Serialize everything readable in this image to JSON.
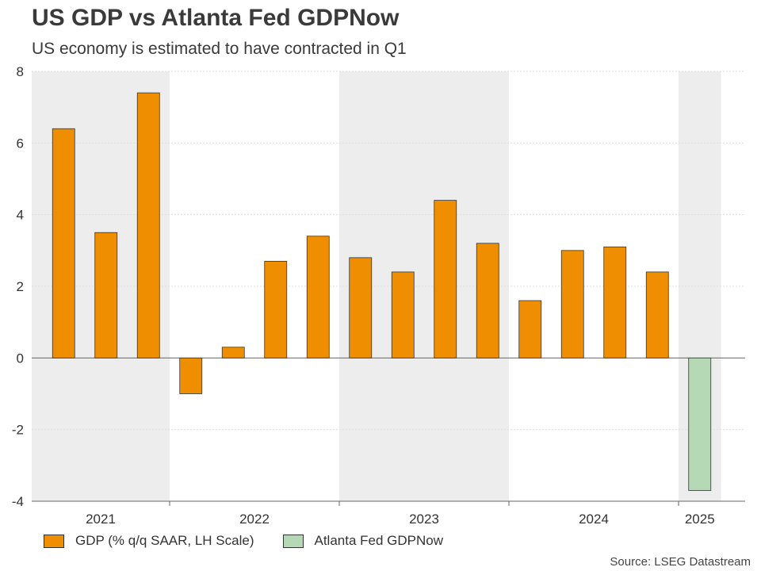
{
  "chart_data": {
    "type": "bar",
    "title": "US GDP vs Atlanta Fed GDPNow",
    "subtitle": "US economy is estimated to have contracted in Q1",
    "ylim": [
      -4,
      8
    ],
    "yticks": [
      "8",
      "6",
      "4",
      "2",
      "0",
      "-2",
      "-4"
    ],
    "grid": true,
    "legend_position": "bottom-left",
    "groups": [
      {
        "year": "2021",
        "shaded": true,
        "values": [
          6.4,
          3.5,
          7.4
        ]
      },
      {
        "year": "2022",
        "shaded": false,
        "values": [
          -1.0,
          0.3,
          2.7,
          3.4
        ]
      },
      {
        "year": "2023",
        "shaded": true,
        "values": [
          2.8,
          2.4,
          4.4,
          3.2
        ]
      },
      {
        "year": "2024",
        "shaded": false,
        "values": [
          1.6,
          3.0,
          3.1,
          2.4
        ]
      },
      {
        "year": "2025",
        "shaded": true,
        "values": [
          -3.7
        ],
        "series": "gdpnow"
      }
    ],
    "series": [
      {
        "key": "gdp",
        "name": "GDP (% q/q SAAR, LH Scale)",
        "color": "#ef8f00"
      },
      {
        "key": "gdpnow",
        "name": "Atlanta Fed GDPNow",
        "color": "#b5d9b5"
      }
    ],
    "source": "Source: LSEG Datastream"
  }
}
